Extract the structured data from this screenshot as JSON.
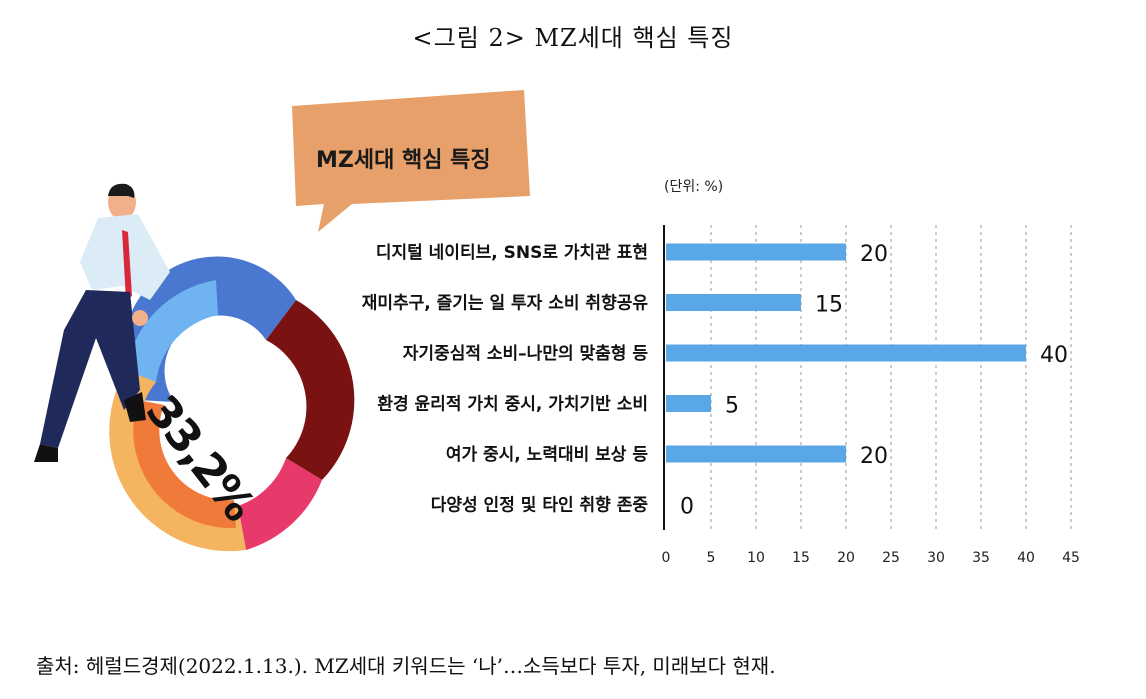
{
  "figure": {
    "title": "<그림 2> MZ세대 핵심 특징",
    "source": "출처: 헤럴드경제(2022.1.13.). MZ세대 키워드는 ‘나’…소득보다 투자, 미래보다 현재."
  },
  "illustration": {
    "bubble_text": "MZ세대 핵심 특징",
    "ring_text": "33,2%"
  },
  "chart_data": {
    "type": "bar",
    "orientation": "horizontal",
    "unit_label": "(단위: %)",
    "categories": [
      "디지털 네이티브, SNS로 가치관 표현",
      "재미추구, 즐기는 일 투자 소비 취향공유",
      "자기중심적 소비–나만의 맞춤형 등",
      "환경 윤리적 가치 중시, 가치기반 소비",
      "여가 중시, 노력대비 보상 등",
      "다양성 인정 및 타인 취향 존중"
    ],
    "values": [
      20,
      15,
      40,
      5,
      20,
      0
    ],
    "xlim": [
      0,
      45
    ],
    "xticks": [
      0,
      5,
      10,
      15,
      20,
      25,
      30,
      35,
      40,
      45
    ],
    "grid": "vertical dashed",
    "bar_color": "#5aa7e8"
  }
}
